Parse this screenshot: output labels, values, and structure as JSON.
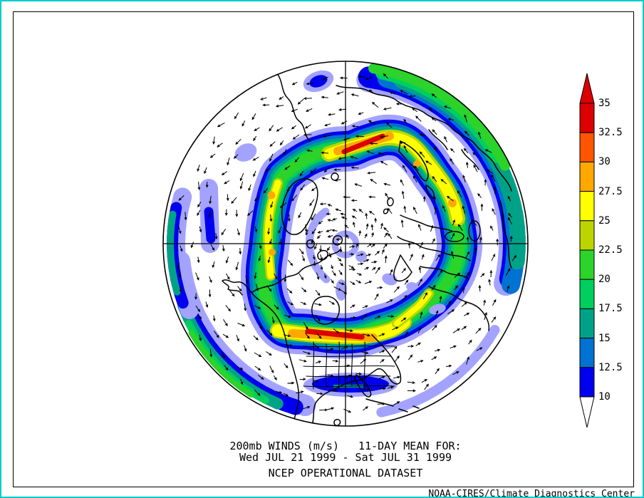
{
  "window": {
    "border_color": "#00CCCC",
    "background": "#FFFFFF"
  },
  "titles": {
    "line1": "200mb WINDS (m/s)   11-DAY MEAN FOR:",
    "line2": "Wed JUL 21 1999 - Sat JUL 31 1999",
    "line3": "NCEP OPERATIONAL DATASET",
    "attribution": "NOAA-CIRES/Climate Diagnostics Center"
  },
  "colorbar": {
    "labels": [
      "35",
      "32.5",
      "30",
      "27.5",
      "25",
      "22.5",
      "20",
      "17.5",
      "15",
      "12.5",
      "10"
    ],
    "units": "m/s",
    "over_color": "#DC0000",
    "under_color": "#FFFFFF"
  },
  "chart_data": {
    "type": "heatmap",
    "subtype": "polar-stereographic-filled-contour-map-with-wind-vectors",
    "variable": "200mb wind speed",
    "units": "m/s",
    "statistic": "11-DAY MEAN",
    "period": "Wed JUL 21 1999 - Sat JUL 31 1999",
    "dataset": "NCEP OPERATIONAL DATASET",
    "region": "Northern Hemisphere, North Pole centered circular view",
    "contour_levels": [
      10,
      12.5,
      15,
      17.5,
      20,
      22.5,
      25,
      27.5,
      30,
      32.5,
      35
    ],
    "palette": {
      "under": "#FFFFFF",
      "bands": [
        {
          "range": "10-12.5",
          "color": "#A3A3FF"
        },
        {
          "range": "12.5-15",
          "color": "#0000EE"
        },
        {
          "range": "15-17.5",
          "color": "#0072D2"
        },
        {
          "range": "17.5-20",
          "color": "#00A287"
        },
        {
          "range": "20-22.5",
          "color": "#00CF5E"
        },
        {
          "range": "22.5-25",
          "color": "#2BD32B"
        },
        {
          "range": "25-27.5",
          "color": "#BCD500"
        },
        {
          "range": "27.5-30",
          "color": "#FFFF00"
        },
        {
          "range": "30-32.5",
          "color": "#FFA800"
        },
        {
          "range": "32.5-35",
          "color": "#FF5500"
        },
        {
          "range": ">35",
          "color": "#DC0000"
        }
      ]
    },
    "vector_overlay": true,
    "flow_direction": "counterclockwise westerly circulation around the pole with dense vortex of vectors at map center",
    "features": [
      {
        "feature": "jet maximum >35 m/s",
        "map_position": "upper-center band, diagonal streak"
      },
      {
        "feature": "jet maximum >35 m/s",
        "map_position": "lower-center band over gridded state outlines"
      },
      {
        "feature": "jet streak 30-32.5 m/s",
        "map_position": "left side of ring, two orange cores"
      },
      {
        "feature": "jet streak 30-32.5 m/s",
        "map_position": "right side of ring descending branch"
      },
      {
        "feature": "yellow streak 27.5-30 m/s",
        "map_position": "lower-right inner branch"
      },
      {
        "feature": "rim band up to 22.5-25 m/s",
        "map_position": "upper-right edge of circle"
      },
      {
        "feature": "rim band up to 22.5-25 m/s",
        "map_position": "lower-left edge of circle"
      },
      {
        "feature": "isolated 12.5-15 m/s patch",
        "map_position": "left-center and top-left and bottom-center (lens shaped)"
      }
    ],
    "attribution": "NOAA-CIRES/Climate Diagnostics Center"
  }
}
